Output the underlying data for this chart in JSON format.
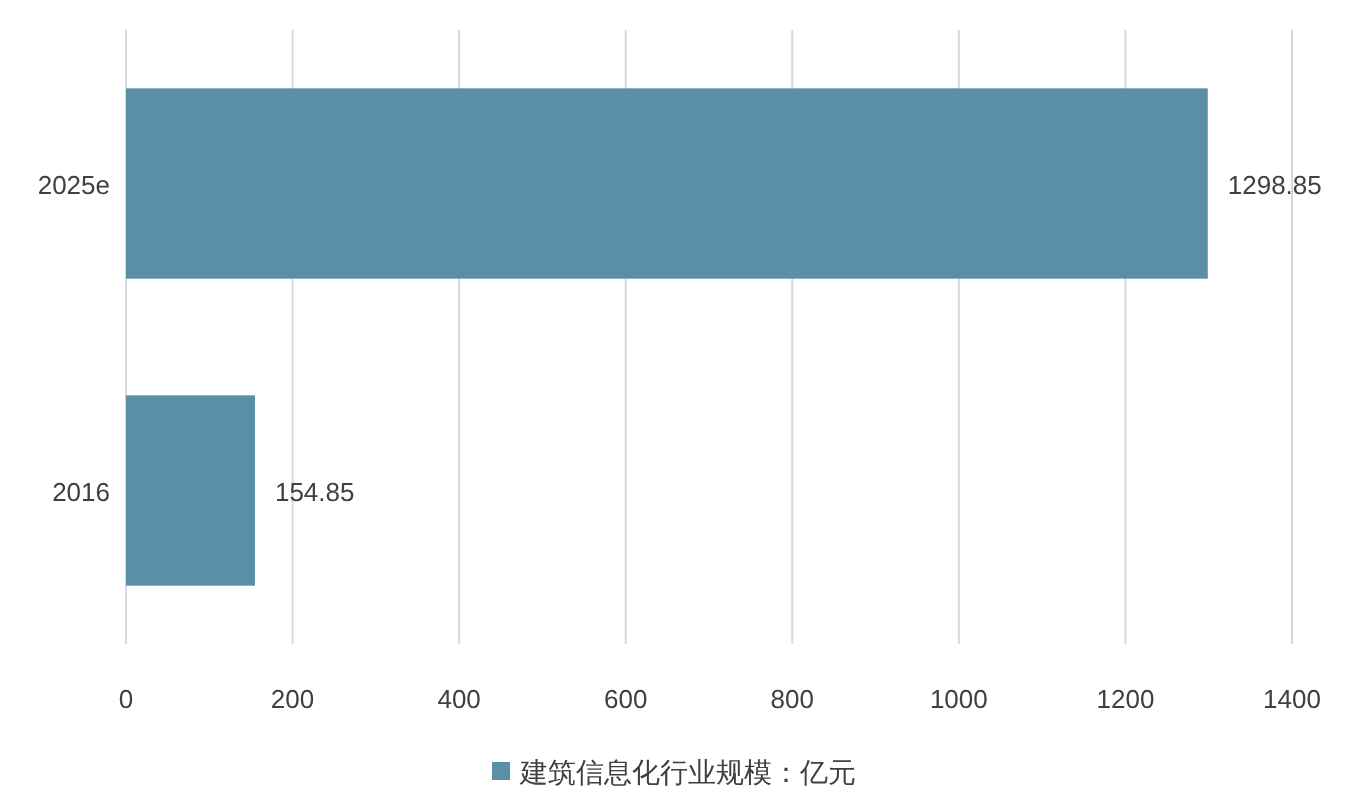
{
  "chart_data": {
    "type": "bar",
    "orientation": "horizontal",
    "categories": [
      "2025e",
      "2016"
    ],
    "series": [
      {
        "name": "建筑信息化行业规模：亿元",
        "color": "#5b8fa6",
        "values": [
          1298.85,
          154.85
        ]
      }
    ],
    "xlim": [
      0,
      1400
    ],
    "xticks": [
      0,
      200,
      400,
      600,
      800,
      1000,
      1200,
      1400
    ],
    "grid": "x",
    "legend": "bottom",
    "data_labels": true
  }
}
